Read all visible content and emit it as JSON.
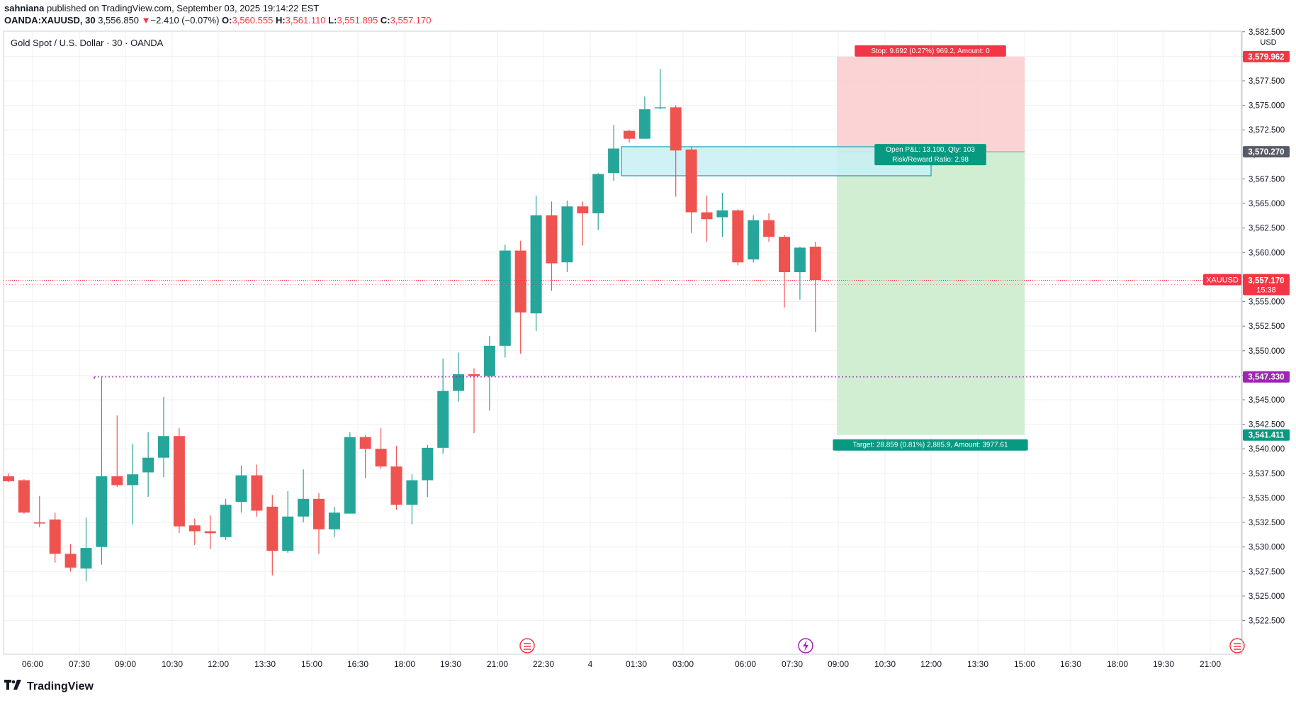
{
  "header": {
    "author": "sahniana",
    "published_text": "published on TradingView.com, September 03, 2025 19:14:22 EST",
    "symbol": "OANDA:XAUUSD, 30",
    "last": "3,556.850",
    "change_arrow": "▼",
    "change": "−2.410 (−0.07%)",
    "o_label": "O:",
    "o_value": "3,560.555",
    "h_label": "H:",
    "h_value": "3,561.110",
    "l_label": "L:",
    "l_value": "3,551.895",
    "c_label": "C:",
    "c_value": "3,557.170"
  },
  "legend": {
    "title": "Gold Spot / U.S. Dollar · 30 · OANDA"
  },
  "footer": {
    "brand": "TradingView"
  },
  "colors": {
    "up": "#26a69a",
    "down": "#ef5350",
    "grid": "#eef0f3",
    "stop_zone": "#fccbcd",
    "target_zone": "#cdeccd",
    "rect_fill": "#c8f0f4",
    "rect_stroke": "#22a3b8",
    "price_line": "#f23645",
    "level_line": "#9c27b0"
  },
  "chart_data": {
    "type": "candlestick",
    "title": "Gold Spot / U.S. Dollar · 30 · OANDA",
    "currency": "USD",
    "ylim": [
      3520.8,
      3584.0
    ],
    "yticks": [
      "3,522.500",
      "3,525.000",
      "3,527.500",
      "3,530.000",
      "3,532.500",
      "3,535.000",
      "3,537.500",
      "3,540.000",
      "3,542.500",
      "3,545.000",
      "3,547.500",
      "3,550.000",
      "3,552.500",
      "3,555.000",
      "3,557.500",
      "3,560.000",
      "3,562.500",
      "3,565.000",
      "3,567.500",
      "3,570.000",
      "3,572.500",
      "3,575.000",
      "3,577.500",
      "3,580.000",
      "3,582.500"
    ],
    "xticks": [
      "06:00",
      "07:30",
      "09:00",
      "10:30",
      "12:00",
      "13:30",
      "15:00",
      "16:30",
      "18:00",
      "19:30",
      "21:00",
      "22:30",
      "4",
      "01:30",
      "03:00",
      "06:00",
      "07:30",
      "09:00",
      "10:30",
      "12:00",
      "13:30",
      "15:00",
      "16:30",
      "18:00",
      "19:30",
      "21:00"
    ],
    "candles": [
      {
        "o": 3537.2,
        "h": 3537.5,
        "l": 3536.6,
        "c": 3536.7
      },
      {
        "o": 3536.8,
        "h": 3536.9,
        "l": 3533.4,
        "c": 3533.5
      },
      {
        "o": 3532.5,
        "h": 3535.2,
        "l": 3532.0,
        "c": 3532.4
      },
      {
        "o": 3532.8,
        "h": 3533.5,
        "l": 3528.4,
        "c": 3529.3
      },
      {
        "o": 3529.3,
        "h": 3530.3,
        "l": 3527.5,
        "c": 3527.9
      },
      {
        "o": 3527.8,
        "h": 3533.0,
        "l": 3526.5,
        "c": 3529.9
      },
      {
        "o": 3530.0,
        "h": 3547.3,
        "l": 3528.2,
        "c": 3537.2
      },
      {
        "o": 3537.2,
        "h": 3543.4,
        "l": 3536.1,
        "c": 3536.3
      },
      {
        "o": 3536.3,
        "h": 3540.5,
        "l": 3532.3,
        "c": 3537.4
      },
      {
        "o": 3537.6,
        "h": 3541.7,
        "l": 3535.1,
        "c": 3539.1
      },
      {
        "o": 3539.1,
        "h": 3545.3,
        "l": 3537.1,
        "c": 3541.3
      },
      {
        "o": 3541.3,
        "h": 3542.1,
        "l": 3531.4,
        "c": 3532.1
      },
      {
        "o": 3532.2,
        "h": 3532.9,
        "l": 3530.2,
        "c": 3531.6
      },
      {
        "o": 3531.6,
        "h": 3533.2,
        "l": 3529.8,
        "c": 3531.4
      },
      {
        "o": 3531.0,
        "h": 3534.9,
        "l": 3530.7,
        "c": 3534.3
      },
      {
        "o": 3534.6,
        "h": 3538.3,
        "l": 3533.5,
        "c": 3537.3
      },
      {
        "o": 3537.3,
        "h": 3538.4,
        "l": 3533.1,
        "c": 3533.7
      },
      {
        "o": 3534.1,
        "h": 3535.3,
        "l": 3527.1,
        "c": 3529.6
      },
      {
        "o": 3529.6,
        "h": 3535.7,
        "l": 3529.4,
        "c": 3533.1
      },
      {
        "o": 3533.1,
        "h": 3537.9,
        "l": 3532.5,
        "c": 3534.9
      },
      {
        "o": 3534.9,
        "h": 3535.5,
        "l": 3529.3,
        "c": 3531.8
      },
      {
        "o": 3531.8,
        "h": 3534.1,
        "l": 3531.0,
        "c": 3533.5
      },
      {
        "o": 3533.4,
        "h": 3541.7,
        "l": 3533.4,
        "c": 3541.2
      },
      {
        "o": 3541.2,
        "h": 3541.4,
        "l": 3537.0,
        "c": 3540.0
      },
      {
        "o": 3540.0,
        "h": 3542.1,
        "l": 3538.0,
        "c": 3538.2
      },
      {
        "o": 3538.2,
        "h": 3540.3,
        "l": 3533.8,
        "c": 3534.3
      },
      {
        "o": 3534.3,
        "h": 3537.4,
        "l": 3532.3,
        "c": 3536.8
      },
      {
        "o": 3536.8,
        "h": 3540.4,
        "l": 3535.1,
        "c": 3540.1
      },
      {
        "o": 3540.1,
        "h": 3549.2,
        "l": 3539.5,
        "c": 3545.9
      },
      {
        "o": 3545.9,
        "h": 3549.8,
        "l": 3544.8,
        "c": 3547.6
      },
      {
        "o": 3547.6,
        "h": 3548.2,
        "l": 3541.6,
        "c": 3547.4
      },
      {
        "o": 3547.4,
        "h": 3551.5,
        "l": 3543.9,
        "c": 3550.5
      },
      {
        "o": 3550.5,
        "h": 3560.8,
        "l": 3549.3,
        "c": 3560.2
      },
      {
        "o": 3560.2,
        "h": 3561.2,
        "l": 3549.7,
        "c": 3553.9
      },
      {
        "o": 3553.8,
        "h": 3565.8,
        "l": 3552.0,
        "c": 3563.8
      },
      {
        "o": 3563.8,
        "h": 3565.2,
        "l": 3556.1,
        "c": 3558.9
      },
      {
        "o": 3559.0,
        "h": 3565.3,
        "l": 3558.0,
        "c": 3564.7
      },
      {
        "o": 3564.7,
        "h": 3565.2,
        "l": 3560.7,
        "c": 3564.0
      },
      {
        "o": 3564.0,
        "h": 3568.1,
        "l": 3562.3,
        "c": 3568.0
      },
      {
        "o": 3568.1,
        "h": 3573.0,
        "l": 3567.3,
        "c": 3570.6
      },
      {
        "o": 3572.4,
        "h": 3572.5,
        "l": 3571.2,
        "c": 3571.6
      },
      {
        "o": 3571.6,
        "h": 3575.9,
        "l": 3571.6,
        "c": 3574.6
      },
      {
        "o": 3574.7,
        "h": 3578.7,
        "l": 3574.6,
        "c": 3574.8
      },
      {
        "o": 3574.8,
        "h": 3575.0,
        "l": 3565.7,
        "c": 3570.4
      },
      {
        "o": 3570.5,
        "h": 3570.8,
        "l": 3562.0,
        "c": 3564.1
      },
      {
        "o": 3564.1,
        "h": 3565.8,
        "l": 3561.1,
        "c": 3563.4
      },
      {
        "o": 3563.6,
        "h": 3566.1,
        "l": 3561.6,
        "c": 3564.3
      },
      {
        "o": 3564.3,
        "h": 3564.4,
        "l": 3558.7,
        "c": 3559.0
      },
      {
        "o": 3559.3,
        "h": 3563.8,
        "l": 3559.0,
        "c": 3563.3
      },
      {
        "o": 3563.3,
        "h": 3564.0,
        "l": 3561.1,
        "c": 3561.6
      },
      {
        "o": 3561.6,
        "h": 3561.8,
        "l": 3554.4,
        "c": 3558.0
      },
      {
        "o": 3558.0,
        "h": 3560.6,
        "l": 3555.2,
        "c": 3560.5
      },
      {
        "o": 3560.6,
        "h": 3561.1,
        "l": 3551.9,
        "c": 3557.2
      }
    ],
    "levels": {
      "current_price": "3,557.170",
      "current_symbol": "XAUUSD",
      "countdown": "15:38",
      "horizontal_level": "3,547.330",
      "stop_price": "3,579.962",
      "entry_price": "3,570.270",
      "target_price": "3,541.411"
    },
    "position_labels": {
      "stop": "Stop: 9.692 (0.27%) 969.2, Amount: 0",
      "pnl": "Open P&L: 13.100, Qty: 103",
      "rr": "Risk/Reward Ratio: 2.98",
      "target": "Target: 28.859 (0.81%) 2,885.9, Amount: 3977.61"
    }
  }
}
